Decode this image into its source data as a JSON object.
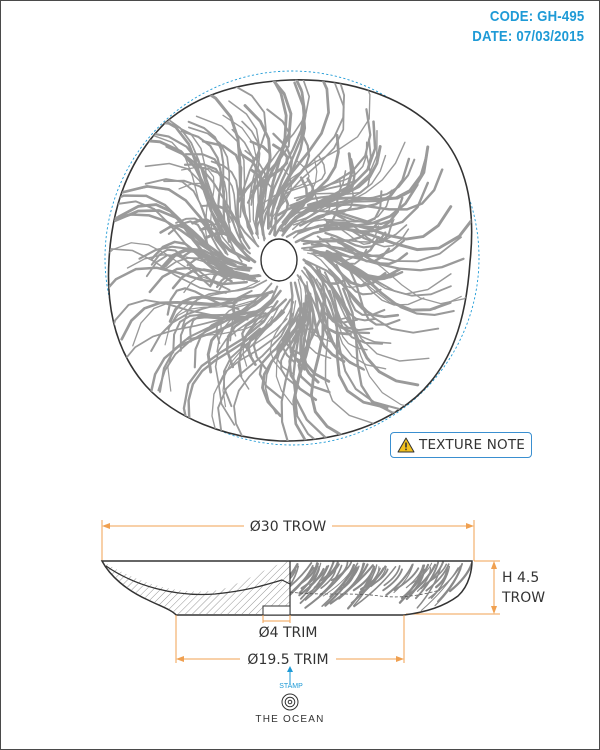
{
  "header": {
    "code": "CODE: GH-495",
    "date": "DATE: 07/03/2015"
  },
  "note_button": {
    "label": "TEXTURE NOTE",
    "icon": "warning-icon"
  },
  "dimensions": {
    "overall_diameter": "Ø30 TROW",
    "height_value": "H 4.5",
    "height_unit": "TROW",
    "foot_diameter": "Ø4 TRIM",
    "base_diameter": "Ø19.5 TRIM"
  },
  "stamp": {
    "label": "STAMP",
    "brand": "THE OCEAN",
    "icon": "ocean-logo-icon"
  },
  "colors": {
    "accent_blue": "#1e9ad6",
    "dimension_orange": "#f0a050",
    "outline": "#3a3a3a",
    "texture_gray": "#9a9a9a"
  }
}
